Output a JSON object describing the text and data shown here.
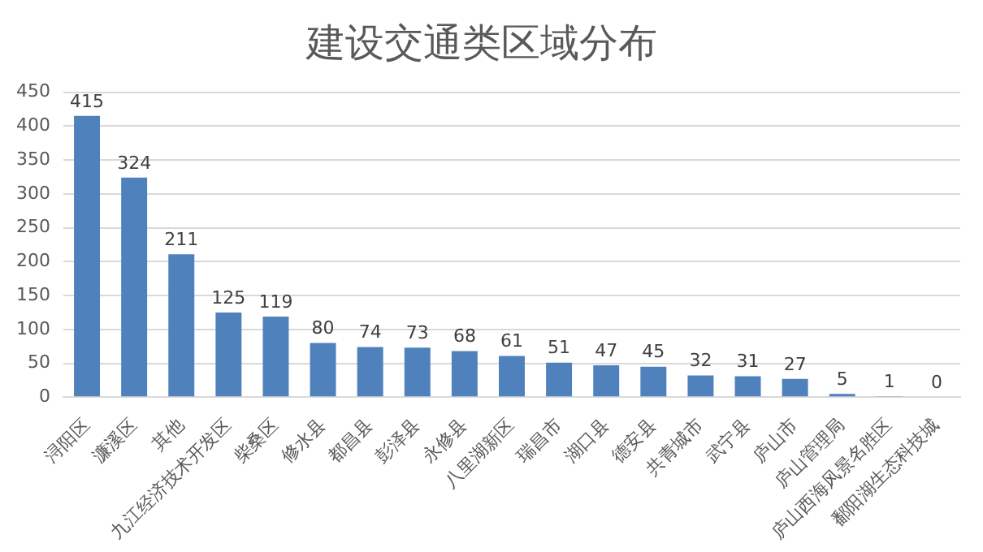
{
  "chart_data": {
    "type": "bar",
    "title": "建设交通类区域分布",
    "categories": [
      "浔阳区",
      "濂溪区",
      "其他",
      "九江经济技术开发区",
      "柴桑区",
      "修水县",
      "都昌县",
      "彭泽县",
      "永修县",
      "八里湖新区",
      "瑞昌市",
      "湖口县",
      "德安县",
      "共青城市",
      "武宁县",
      "庐山市",
      "庐山管理局",
      "庐山西海风景名胜区",
      "鄱阳湖生态科技城"
    ],
    "values": [
      415,
      324,
      211,
      125,
      119,
      80,
      74,
      73,
      68,
      61,
      51,
      47,
      45,
      32,
      31,
      27,
      5,
      1,
      0
    ],
    "color": "#4f81bd",
    "ylim": [
      0,
      450
    ],
    "yticks": [
      0,
      50,
      100,
      150,
      200,
      250,
      300,
      350,
      400,
      450
    ],
    "grid": "y",
    "data_labels": true,
    "legend": false
  }
}
